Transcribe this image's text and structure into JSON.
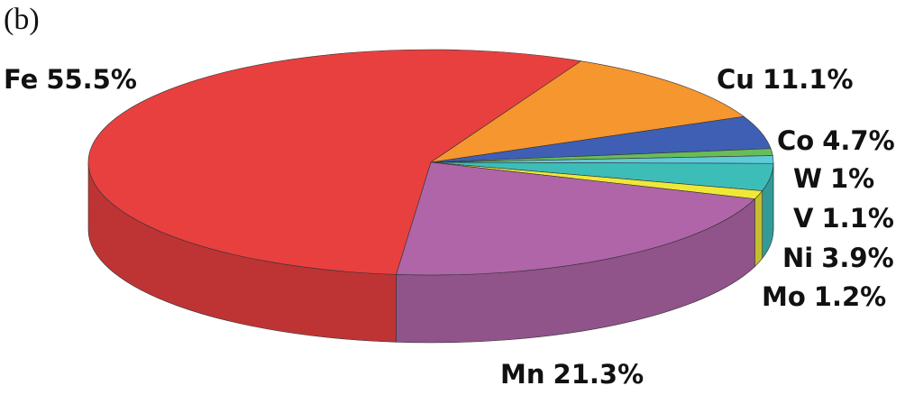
{
  "chart_data": {
    "type": "pie3d",
    "subtitle": "(b)",
    "categories": [
      "Fe",
      "Cu",
      "Co",
      "W",
      "V",
      "Ni",
      "Mo",
      "Mn"
    ],
    "values": [
      55.5,
      11.1,
      4.7,
      1,
      1.1,
      3.9,
      1.2,
      21.3
    ],
    "value_labels": [
      "55.5%",
      "11.1%",
      "4.7%",
      "1%",
      "1.1%",
      "3.9%",
      "1.2%",
      "21.3%"
    ],
    "colors": [
      "#e8403f",
      "#f5962e",
      "#3f5fb5",
      "#68bd58",
      "#5ecbd9",
      "#3dbdb8",
      "#f0e838",
      "#b065a8"
    ]
  }
}
